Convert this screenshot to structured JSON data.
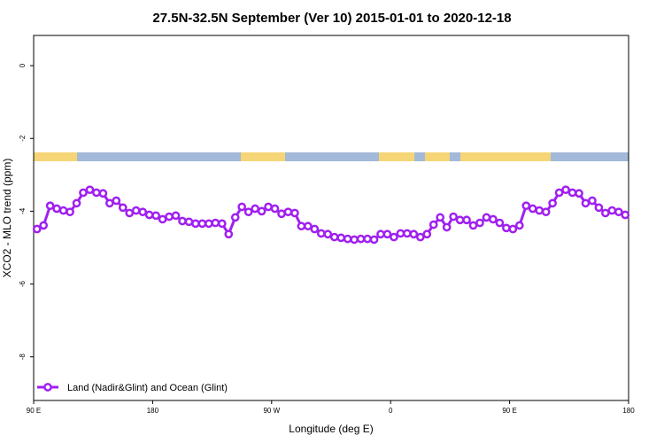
{
  "chart_data": {
    "type": "line",
    "title": "27.5N-32.5N September (Ver 10)   2015-01-01 to 2020-12-18",
    "x_label": "Longitude (deg E)",
    "y_label": "XCO2 - MLO trend (ppm)",
    "xlim": [
      90,
      540
    ],
    "ylim": [
      -9.2,
      0.83
    ],
    "xticks": [
      {
        "value": 90,
        "label": "90 E"
      },
      180,
      {
        "value": 270,
        "label": "90 W"
      },
      {
        "value": 360,
        "label": "0"
      },
      {
        "value": 450,
        "label": "90 E"
      },
      {
        "value": 540,
        "label": "180"
      }
    ],
    "yticks": [
      0,
      -2,
      -4,
      -6,
      -8
    ],
    "legend": "bottom-left",
    "x": [
      92.5,
      97.5,
      102.5,
      107.5,
      112.5,
      117.5,
      122.5,
      127.5,
      132.5,
      137.5,
      142.5,
      147.5,
      152.5,
      157.5,
      162.5,
      167.5,
      172.5,
      177.5,
      182.5,
      187.5,
      192.5,
      197.5,
      202.5,
      207.5,
      212.5,
      217.5,
      222.5,
      227.5,
      232.5,
      237.5,
      242.5,
      247.5,
      252.5,
      257.5,
      262.5,
      267.5,
      272.5,
      277.5,
      282.5,
      287.5,
      292.5,
      297.5,
      302.5,
      307.5,
      312.5,
      317.5,
      322.5,
      327.5,
      332.5,
      337.5,
      342.5,
      347.5,
      352.5,
      357.5,
      362.5,
      367.5,
      372.5,
      377.5,
      382.5,
      387.5,
      392.5,
      397.5,
      402.5,
      407.5,
      412.5,
      417.5,
      422.5,
      427.5,
      432.5,
      437.5,
      442.5,
      447.5,
      452.5,
      457.5,
      462.5,
      467.5,
      472.5,
      477.5,
      482.5,
      487.5,
      492.5,
      497.5,
      502.5,
      507.5,
      512.5,
      517.5,
      522.5,
      527.5,
      532.5,
      537.5
    ],
    "series": [
      {
        "name": "Land (Nadir&Glint) and Ocean (Glint)",
        "color": "#a020f0",
        "values": [
          -4.49,
          -4.39,
          -3.85,
          -3.93,
          -3.98,
          -4.02,
          -3.78,
          -3.49,
          -3.41,
          -3.49,
          -3.51,
          -3.78,
          -3.71,
          -3.9,
          -4.05,
          -3.98,
          -4.02,
          -4.1,
          -4.12,
          -4.22,
          -4.15,
          -4.12,
          -4.27,
          -4.29,
          -4.34,
          -4.34,
          -4.34,
          -4.32,
          -4.34,
          -4.63,
          -4.17,
          -3.88,
          -4.02,
          -3.93,
          -4.0,
          -3.88,
          -3.93,
          -4.07,
          -4.02,
          -4.05,
          -4.41,
          -4.41,
          -4.49,
          -4.61,
          -4.63,
          -4.71,
          -4.73,
          -4.76,
          -4.78,
          -4.76,
          -4.76,
          -4.78,
          -4.63,
          -4.63,
          -4.71,
          -4.61,
          -4.61,
          -4.63,
          -4.71,
          -4.63,
          -4.37,
          -4.17,
          -4.44,
          -4.15,
          -4.24,
          -4.24,
          -4.39,
          -4.32,
          -4.17,
          -4.22,
          -4.32,
          -4.46,
          -4.49,
          -4.39,
          -3.85,
          -3.93,
          -3.98,
          -4.02,
          -3.78,
          -3.49,
          -3.41,
          -3.49,
          -3.51,
          -3.78,
          -3.71,
          -3.9,
          -4.05,
          -3.98,
          -4.02,
          -4.1
        ]
      }
    ]
  }
}
